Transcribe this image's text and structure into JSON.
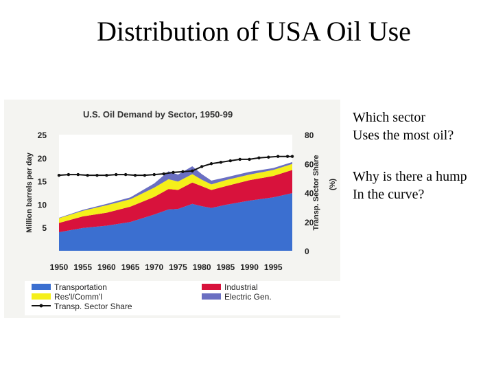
{
  "slide": {
    "title": "Distribution of USA Oil Use",
    "question1": [
      "Which sector",
      "Uses the most oil?"
    ],
    "question2": [
      "Why is there a hump",
      "In the curve?"
    ]
  },
  "colors": {
    "transportation": "#3b6fd0",
    "industrial": "#d8123c",
    "residential": "#f5ef1a",
    "electric": "#6a6fc2",
    "share_line": "#111111",
    "panel": "#f4f4f1"
  },
  "chart_data": {
    "type": "area",
    "title": "U.S. Oil Demand by Sector, 1950-99",
    "ylabel": "Million barrels per day",
    "y2label": "Transp. Sector Share (%)",
    "x": [
      1950,
      1955,
      1960,
      1965,
      1970,
      1973,
      1975,
      1978,
      1980,
      1982,
      1985,
      1990,
      1995,
      1999
    ],
    "xticks": [
      "1950",
      "1955",
      "1960",
      "1965",
      "1970",
      "1975",
      "1980",
      "1985",
      "1990",
      "1995"
    ],
    "xtick_values": [
      1950,
      1955,
      1960,
      1965,
      1970,
      1975,
      1980,
      1985,
      1990,
      1995
    ],
    "ylim": [
      0,
      25
    ],
    "yticks": [
      5,
      10,
      15,
      20,
      25
    ],
    "y2lim": [
      0,
      80
    ],
    "y2ticks": [
      0,
      20,
      40,
      60,
      80
    ],
    "stacked": true,
    "series": [
      {
        "name": "Transportation",
        "values": [
          4.0,
          4.9,
          5.4,
          6.2,
          7.8,
          8.9,
          9.0,
          10.1,
          9.6,
          9.2,
          9.9,
          10.8,
          11.5,
          12.4
        ]
      },
      {
        "name": "Industrial",
        "values": [
          2.0,
          2.5,
          2.8,
          3.3,
          3.8,
          4.4,
          4.1,
          4.6,
          4.3,
          3.9,
          4.0,
          4.4,
          4.6,
          5.0
        ]
      },
      {
        "name": "Res'l/Comm'l",
        "values": [
          1.0,
          1.2,
          1.6,
          1.6,
          2.0,
          2.1,
          1.8,
          1.8,
          1.4,
          1.2,
          1.3,
          1.2,
          1.3,
          1.3
        ]
      },
      {
        "name": "Electric Gen.",
        "values": [
          0.1,
          0.2,
          0.3,
          0.4,
          0.9,
          1.7,
          1.5,
          1.7,
          1.2,
          0.8,
          0.6,
          0.6,
          0.4,
          0.4
        ]
      }
    ],
    "line_series": {
      "name": "Transp. Sector Share",
      "axis": "right",
      "x": [
        1950,
        1952,
        1954,
        1956,
        1958,
        1960,
        1962,
        1964,
        1966,
        1968,
        1970,
        1972,
        1974,
        1976,
        1978,
        1980,
        1982,
        1984,
        1986,
        1988,
        1990,
        1992,
        1994,
        1996,
        1998,
        1999
      ],
      "values": [
        52,
        52.5,
        52.5,
        52,
        52,
        52,
        52.5,
        52.5,
        52,
        52,
        52.5,
        53,
        54,
        54.5,
        55,
        58,
        60,
        61,
        62,
        63,
        63,
        64,
        64.5,
        65,
        65,
        65
      ]
    },
    "legend": {
      "placement": "bottom",
      "entries": [
        "Transportation",
        "Industrial",
        "Res'l/Comm'l",
        "Electric Gen.",
        "Transp. Sector Share"
      ]
    }
  }
}
